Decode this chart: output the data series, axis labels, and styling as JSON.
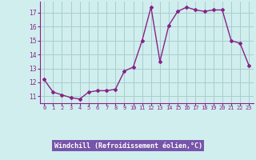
{
  "hours": [
    0,
    1,
    2,
    3,
    4,
    5,
    6,
    7,
    8,
    9,
    10,
    11,
    12,
    13,
    14,
    15,
    16,
    17,
    18,
    19,
    20,
    21,
    22,
    23
  ],
  "values": [
    12.2,
    11.3,
    11.1,
    10.9,
    10.8,
    11.3,
    11.4,
    11.4,
    11.5,
    12.8,
    13.1,
    15.0,
    17.4,
    13.5,
    16.1,
    17.1,
    17.4,
    17.2,
    17.1,
    17.2,
    17.2,
    15.0,
    14.8,
    13.2
  ],
  "line_color": "#882288",
  "marker": "D",
  "markersize": 2.0,
  "linewidth": 1.0,
  "bg_color": "#d0eeee",
  "grid_color": "#aacccc",
  "ylim": [
    10.5,
    17.8
  ],
  "yticks": [
    11,
    12,
    13,
    14,
    15,
    16,
    17
  ],
  "xlabel": "Windchill (Refroidissement éolien,°C)",
  "xlabel_bg": "#7755aa",
  "xlabel_color": "#ffffff",
  "axis_color": "#882288"
}
